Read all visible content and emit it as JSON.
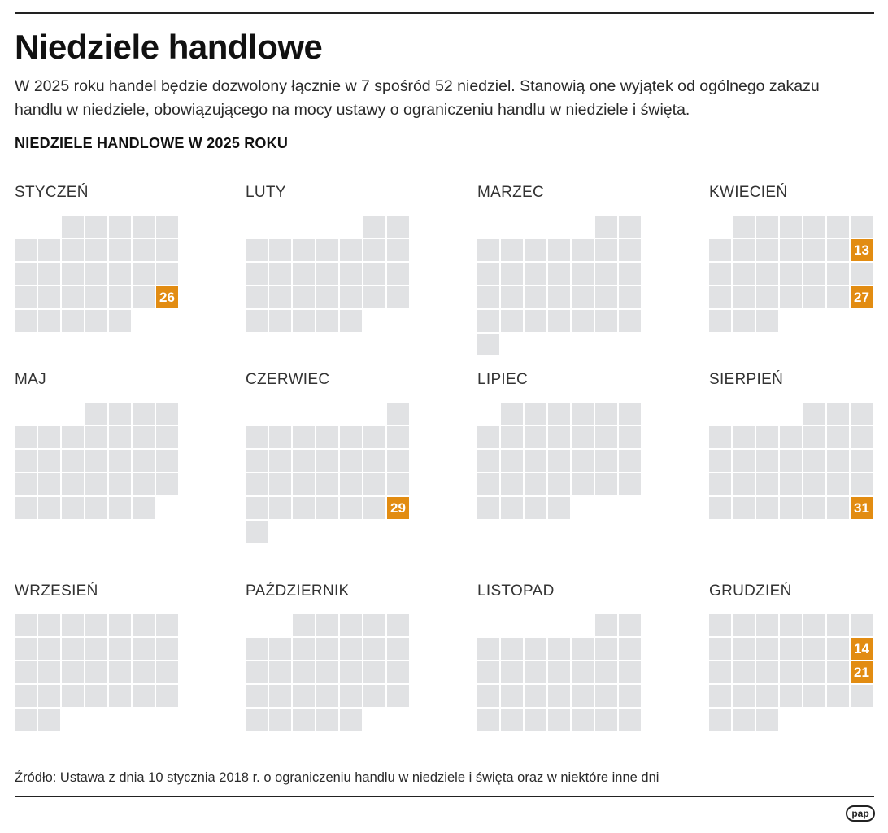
{
  "header": {
    "title": "Niedziele handlowe",
    "intro": "W 2025 roku handel będzie dozwolony łącznie w 7 spośród 52 niedziel. Stanowią one wyjątek od ogólnego zakazu handlu w niedziele, obowiązującego na mocy ustawy o ograniczeniu handlu w niedziele i święta.",
    "section_heading": "NIEDZIELE HANDLOWE W 2025 ROKU"
  },
  "colors": {
    "cell": "#e1e2e4",
    "highlight": "#e28c12",
    "text": "#222222"
  },
  "months": [
    {
      "name": "STYCZEŃ",
      "first_weekday": 3,
      "days": 31,
      "trading_sundays": [
        26
      ]
    },
    {
      "name": "LUTY",
      "first_weekday": 6,
      "days": 28,
      "trading_sundays": []
    },
    {
      "name": "MARZEC",
      "first_weekday": 6,
      "days": 31,
      "trading_sundays": []
    },
    {
      "name": "KWIECIEŃ",
      "first_weekday": 2,
      "days": 30,
      "trading_sundays": [
        13,
        27
      ]
    },
    {
      "name": "MAJ",
      "first_weekday": 4,
      "days": 31,
      "trading_sundays": []
    },
    {
      "name": "CZERWIEC",
      "first_weekday": 7,
      "days": 30,
      "trading_sundays": [
        29
      ]
    },
    {
      "name": "LIPIEC",
      "first_weekday": 2,
      "days": 31,
      "trading_sundays": []
    },
    {
      "name": "SIERPIEŃ",
      "first_weekday": 5,
      "days": 31,
      "trading_sundays": [
        31
      ]
    },
    {
      "name": "WRZESIEŃ",
      "first_weekday": 1,
      "days": 30,
      "trading_sundays": []
    },
    {
      "name": "PAŹDZIERNIK",
      "first_weekday": 3,
      "days": 31,
      "trading_sundays": []
    },
    {
      "name": "LISTOPAD",
      "first_weekday": 6,
      "days": 30,
      "trading_sundays": []
    },
    {
      "name": "GRUDZIEŃ",
      "first_weekday": 1,
      "days": 31,
      "trading_sundays": [
        14,
        21
      ]
    }
  ],
  "footer": {
    "source": "Źródło: Ustawa z dnia 10 stycznia 2018 r. o ograniczeniu handlu w niedziele i święta oraz w niektóre inne dni",
    "logo": "pap"
  }
}
